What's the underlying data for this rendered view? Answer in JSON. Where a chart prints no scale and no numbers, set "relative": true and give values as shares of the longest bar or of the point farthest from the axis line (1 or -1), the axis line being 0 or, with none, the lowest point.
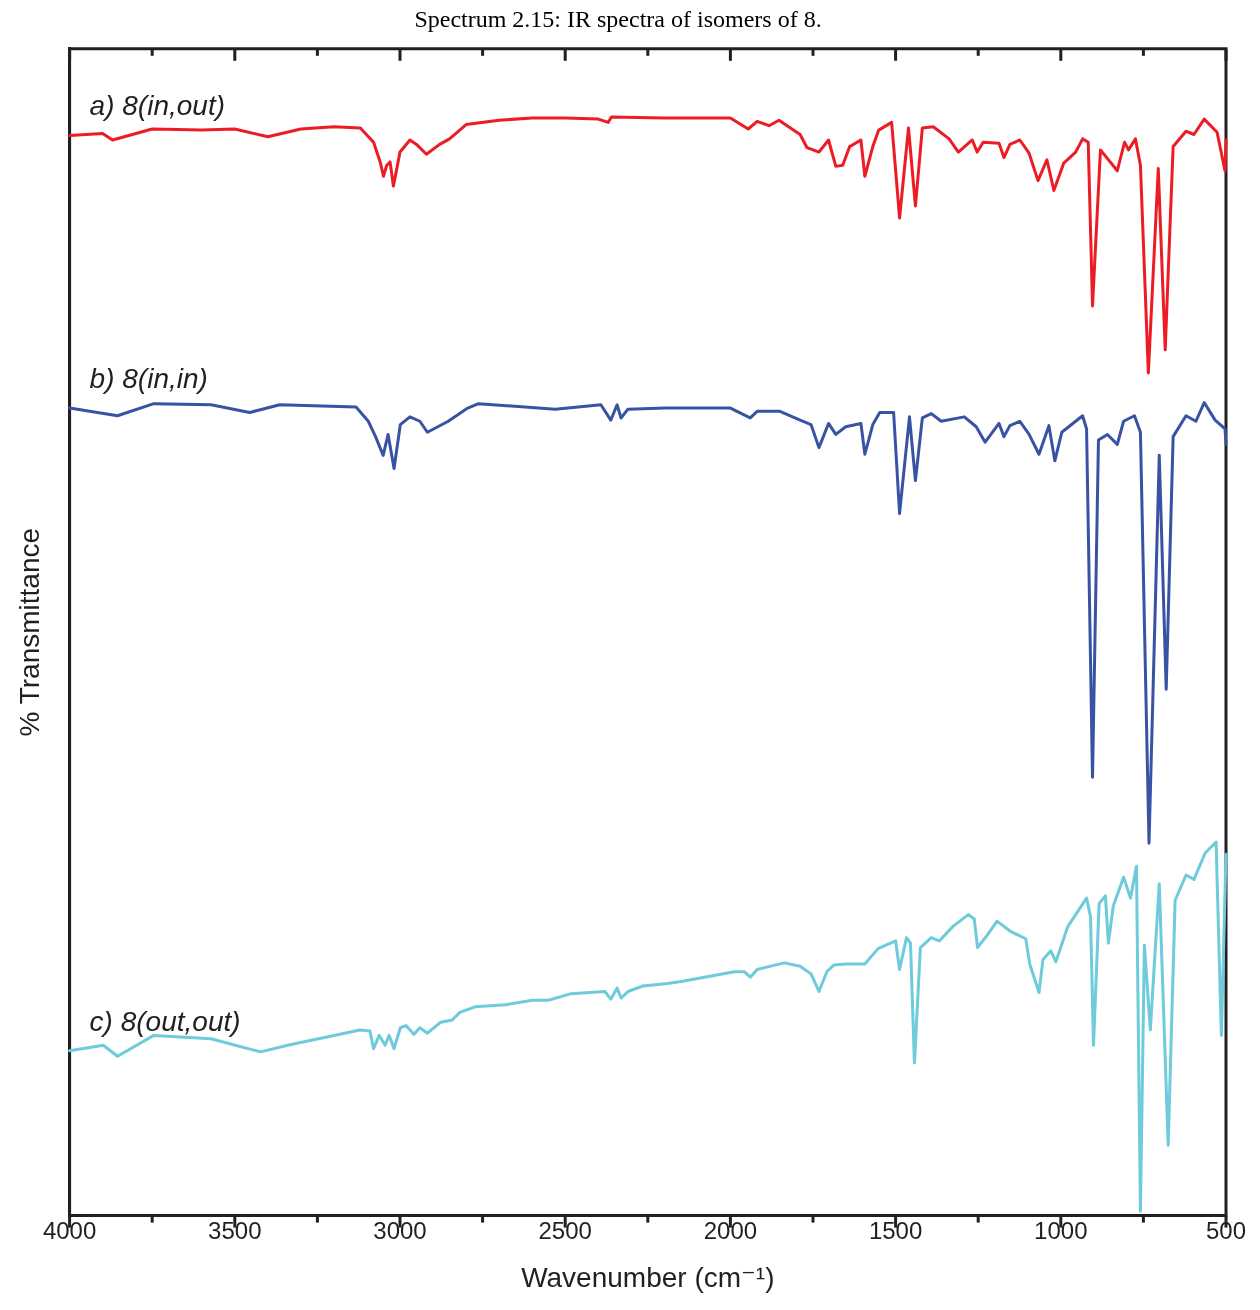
{
  "chart_data": {
    "type": "line",
    "relative": true,
    "title": "Spectrum 2.15: IR spectra of isomers of 8.",
    "xlabel": "Wavenumber (cm⁻¹)",
    "ylabel": "% Transmittance",
    "xlim": [
      4000,
      500
    ],
    "xticks": [
      4000,
      {
        "value": 3750,
        "label": null
      },
      3500,
      {
        "value": 3250,
        "label": null
      },
      3000,
      {
        "value": 2750,
        "label": null
      },
      2500,
      {
        "value": 2250,
        "label": null
      },
      2000,
      {
        "value": 1750,
        "label": null
      },
      1500,
      {
        "value": 1250,
        "label": null
      },
      1000,
      {
        "value": 750,
        "label": null
      },
      500
    ],
    "grid": false,
    "legend": false,
    "marker": "none",
    "series": [
      {
        "name": "a) 8(in,out)",
        "color": "#ed1c24",
        "x": [
          4000,
          3900,
          3870,
          3750,
          3600,
          3500,
          3400,
          3300,
          3200,
          3120,
          3080,
          3060,
          3050,
          3040,
          3030,
          3020,
          3000,
          2970,
          2950,
          2920,
          2880,
          2850,
          2800,
          2700,
          2600,
          2500,
          2400,
          2370,
          2360,
          2200,
          2000,
          1946,
          1919,
          1883,
          1853,
          1789,
          1768,
          1732,
          1703,
          1681,
          1660,
          1639,
          1605,
          1593,
          1569,
          1551,
          1512,
          1488,
          1461,
          1440,
          1419,
          1386,
          1338,
          1310,
          1268,
          1253,
          1235,
          1187,
          1172,
          1154,
          1124,
          1096,
          1069,
          1042,
          1021,
          991,
          955,
          934,
          917,
          904,
          880,
          829,
          807,
          795,
          774,
          759,
          735,
          705,
          684,
          660,
          621,
          597,
          566,
          527,
          503,
          500
        ],
        "values": [
          0.983,
          0.985,
          0.979,
          0.989,
          0.988,
          0.989,
          0.982,
          0.989,
          0.991,
          0.99,
          0.977,
          0.959,
          0.946,
          0.956,
          0.959,
          0.937,
          0.968,
          0.979,
          0.975,
          0.966,
          0.975,
          0.98,
          0.993,
          0.997,
          0.999,
          0.999,
          0.998,
          0.995,
          1.0,
          0.999,
          0.999,
          0.989,
          0.996,
          0.992,
          0.997,
          0.984,
          0.972,
          0.968,
          0.979,
          0.955,
          0.956,
          0.973,
          0.979,
          0.946,
          0.973,
          0.988,
          0.995,
          0.908,
          0.99,
          0.919,
          0.99,
          0.991,
          0.98,
          0.968,
          0.979,
          0.968,
          0.977,
          0.976,
          0.963,
          0.975,
          0.979,
          0.967,
          0.942,
          0.961,
          0.933,
          0.958,
          0.968,
          0.98,
          0.977,
          0.828,
          0.97,
          0.951,
          0.977,
          0.97,
          0.98,
          0.956,
          0.767,
          0.953,
          0.788,
          0.973,
          0.987,
          0.984,
          0.998,
          0.986,
          0.951,
          0.979
        ]
      },
      {
        "name": "b) 8(in,in)",
        "color": "#3953a4",
        "x": [
          4000,
          3855,
          3745,
          3572,
          3455,
          3364,
          3133,
          3096,
          3074,
          3051,
          3036,
          3018,
          2999,
          2970,
          2940,
          2917,
          2854,
          2795,
          2762,
          2530,
          2392,
          2362,
          2343,
          2331,
          2310,
          2196,
          2000,
          1940,
          1919,
          1850,
          1789,
          1756,
          1732,
          1703,
          1681,
          1651,
          1605,
          1593,
          1569,
          1548,
          1506,
          1488,
          1458,
          1440,
          1419,
          1392,
          1362,
          1292,
          1256,
          1229,
          1187,
          1172,
          1154,
          1124,
          1096,
          1066,
          1036,
          1018,
          997,
          934,
          922,
          904,
          886,
          859,
          829,
          810,
          777,
          759,
          733,
          702,
          681,
          660,
          621,
          591,
          566,
          533,
          503,
          500
        ],
        "values": [
          0.735,
          0.728,
          0.739,
          0.738,
          0.731,
          0.738,
          0.736,
          0.723,
          0.709,
          0.692,
          0.711,
          0.68,
          0.72,
          0.727,
          0.723,
          0.713,
          0.723,
          0.735,
          0.739,
          0.734,
          0.738,
          0.724,
          0.738,
          0.726,
          0.734,
          0.735,
          0.735,
          0.726,
          0.732,
          0.732,
          0.724,
          0.72,
          0.699,
          0.721,
          0.711,
          0.718,
          0.721,
          0.693,
          0.72,
          0.731,
          0.731,
          0.639,
          0.727,
          0.669,
          0.726,
          0.73,
          0.723,
          0.727,
          0.718,
          0.704,
          0.721,
          0.709,
          0.719,
          0.723,
          0.711,
          0.693,
          0.719,
          0.687,
          0.713,
          0.728,
          0.716,
          0.399,
          0.706,
          0.711,
          0.702,
          0.723,
          0.728,
          0.713,
          0.339,
          0.692,
          0.479,
          0.709,
          0.728,
          0.723,
          0.74,
          0.724,
          0.716,
          0.702
        ]
      },
      {
        "name": "c) 8(out,out)",
        "color": "#6dcbdb",
        "x": [
          4000,
          3898,
          3855,
          3745,
          3572,
          3422,
          3340,
          3121,
          3091,
          3080,
          3063,
          3045,
          3033,
          3018,
          2999,
          2982,
          2958,
          2940,
          2917,
          2877,
          2842,
          2819,
          2773,
          2681,
          2599,
          2551,
          2482,
          2380,
          2362,
          2343,
          2331,
          2310,
          2265,
          2196,
          2149,
          1988,
          1958,
          1940,
          1919,
          1837,
          1789,
          1756,
          1732,
          1708,
          1687,
          1651,
          1593,
          1553,
          1500,
          1488,
          1467,
          1455,
          1443,
          1425,
          1392,
          1368,
          1327,
          1280,
          1262,
          1252,
          1223,
          1193,
          1154,
          1106,
          1094,
          1066,
          1054,
          1030,
          1015,
          979,
          922,
          910,
          901,
          884,
          865,
          856,
          841,
          810,
          789,
          771,
          759,
          747,
          729,
          702,
          675,
          654,
          621,
          597,
          563,
          530,
          514,
          500
        ],
        "values": [
          0.15,
          0.155,
          0.145,
          0.164,
          0.161,
          0.149,
          0.155,
          0.169,
          0.168,
          0.152,
          0.164,
          0.155,
          0.164,
          0.152,
          0.171,
          0.173,
          0.165,
          0.171,
          0.166,
          0.176,
          0.178,
          0.185,
          0.19,
          0.192,
          0.196,
          0.196,
          0.202,
          0.204,
          0.197,
          0.207,
          0.198,
          0.204,
          0.209,
          0.211,
          0.213,
          0.222,
          0.222,
          0.217,
          0.224,
          0.23,
          0.227,
          0.22,
          0.204,
          0.222,
          0.228,
          0.229,
          0.229,
          0.243,
          0.25,
          0.224,
          0.253,
          0.248,
          0.139,
          0.244,
          0.253,
          0.25,
          0.263,
          0.274,
          0.27,
          0.244,
          0.255,
          0.268,
          0.259,
          0.252,
          0.229,
          0.203,
          0.233,
          0.241,
          0.231,
          0.263,
          0.289,
          0.272,
          0.155,
          0.284,
          0.291,
          0.248,
          0.282,
          0.308,
          0.289,
          0.318,
          0.004,
          0.246,
          0.169,
          0.302,
          0.064,
          0.287,
          0.31,
          0.306,
          0.33,
          0.34,
          0.164,
          0.329
        ]
      }
    ]
  }
}
